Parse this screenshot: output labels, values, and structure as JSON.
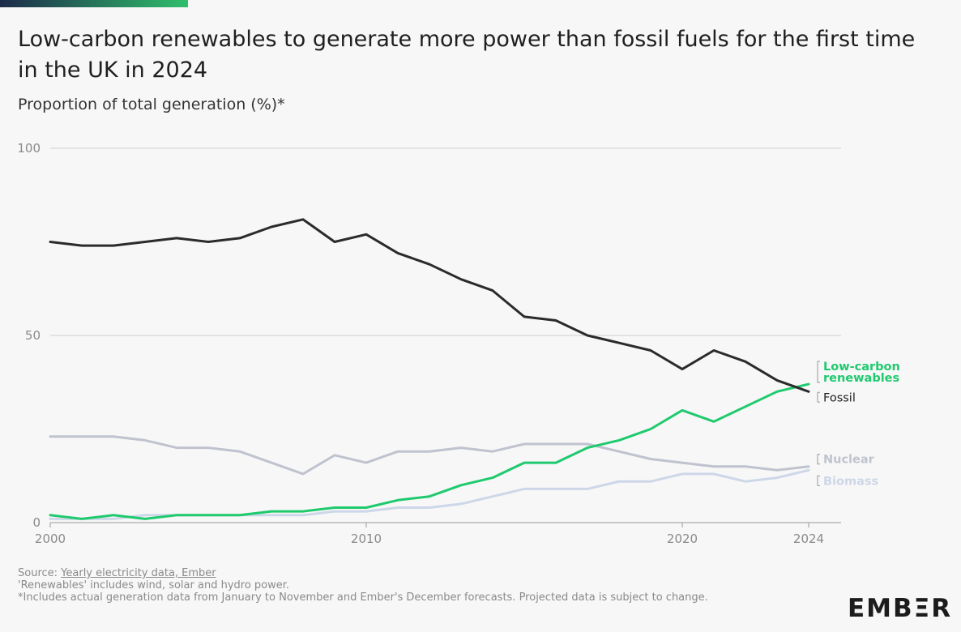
{
  "header": {
    "title": "Low-carbon renewables to generate more power than fossil fuels for the first time in the UK in 2024",
    "subtitle": "Proportion of total generation (%)*"
  },
  "footer": {
    "source_prefix": "Source: ",
    "source_link": "Yearly electricity data, Ember",
    "note1": "'Renewables' includes wind, solar and hydro power.",
    "note2": "*Includes actual generation data from January to November and Ember's December forecasts. Projected data is subject to change."
  },
  "logo": {
    "text_left": "EMB",
    "text_mid": "Ξ",
    "text_right": "R"
  },
  "colors": {
    "fossil": "#2b2b2b",
    "renewables": "#1fca6e",
    "nuclear": "#c0c3cf",
    "biomass": "#cdd7e8",
    "grid": "#cfcfcf",
    "topbar_start": "#1d2a4a",
    "topbar_end": "#2fbf6b"
  },
  "chart_data": {
    "type": "line",
    "title": "Low-carbon renewables to generate more power than fossil fuels for the first time in the UK in 2024",
    "ylabel": "Proportion of total generation (%)*",
    "xlabel": "",
    "xlim": [
      2000,
      2024
    ],
    "ylim": [
      0,
      100
    ],
    "yticks": [
      0,
      50,
      100
    ],
    "xticks": [
      2000,
      2010,
      2020,
      2024
    ],
    "grid": true,
    "x": [
      2000,
      2001,
      2002,
      2003,
      2004,
      2005,
      2006,
      2007,
      2008,
      2009,
      2010,
      2011,
      2012,
      2013,
      2014,
      2015,
      2016,
      2017,
      2018,
      2019,
      2020,
      2021,
      2022,
      2023,
      2024
    ],
    "series": [
      {
        "name": "Fossil",
        "color_key": "fossil",
        "values": [
          75,
          74,
          74,
          75,
          76,
          75,
          76,
          79,
          81,
          75,
          77,
          72,
          69,
          65,
          62,
          55,
          54,
          50,
          48,
          46,
          41,
          46,
          43,
          38,
          35
        ]
      },
      {
        "name": "Low-carbon renewables",
        "color_key": "renewables",
        "values": [
          2,
          1,
          2,
          1,
          2,
          2,
          2,
          3,
          3,
          4,
          4,
          6,
          7,
          10,
          12,
          16,
          16,
          20,
          22,
          25,
          30,
          27,
          31,
          35,
          37
        ]
      },
      {
        "name": "Nuclear",
        "color_key": "nuclear",
        "values": [
          23,
          23,
          23,
          22,
          20,
          20,
          19,
          16,
          13,
          18,
          16,
          19,
          19,
          20,
          19,
          21,
          21,
          21,
          19,
          17,
          16,
          15,
          15,
          14,
          15
        ]
      },
      {
        "name": "Biomass",
        "color_key": "biomass",
        "values": [
          1,
          1,
          1,
          2,
          2,
          2,
          2,
          2,
          2,
          3,
          3,
          4,
          4,
          5,
          7,
          9,
          9,
          9,
          11,
          11,
          13,
          13,
          11,
          12,
          14
        ]
      }
    ],
    "labels": [
      {
        "series": "Low-carbon renewables",
        "lines": [
          "Low-carbon",
          "renewables"
        ]
      },
      {
        "series": "Fossil",
        "lines": [
          "Fossil"
        ]
      },
      {
        "series": "Nuclear",
        "lines": [
          "Nuclear"
        ]
      },
      {
        "series": "Biomass",
        "lines": [
          "Biomass"
        ]
      }
    ]
  }
}
